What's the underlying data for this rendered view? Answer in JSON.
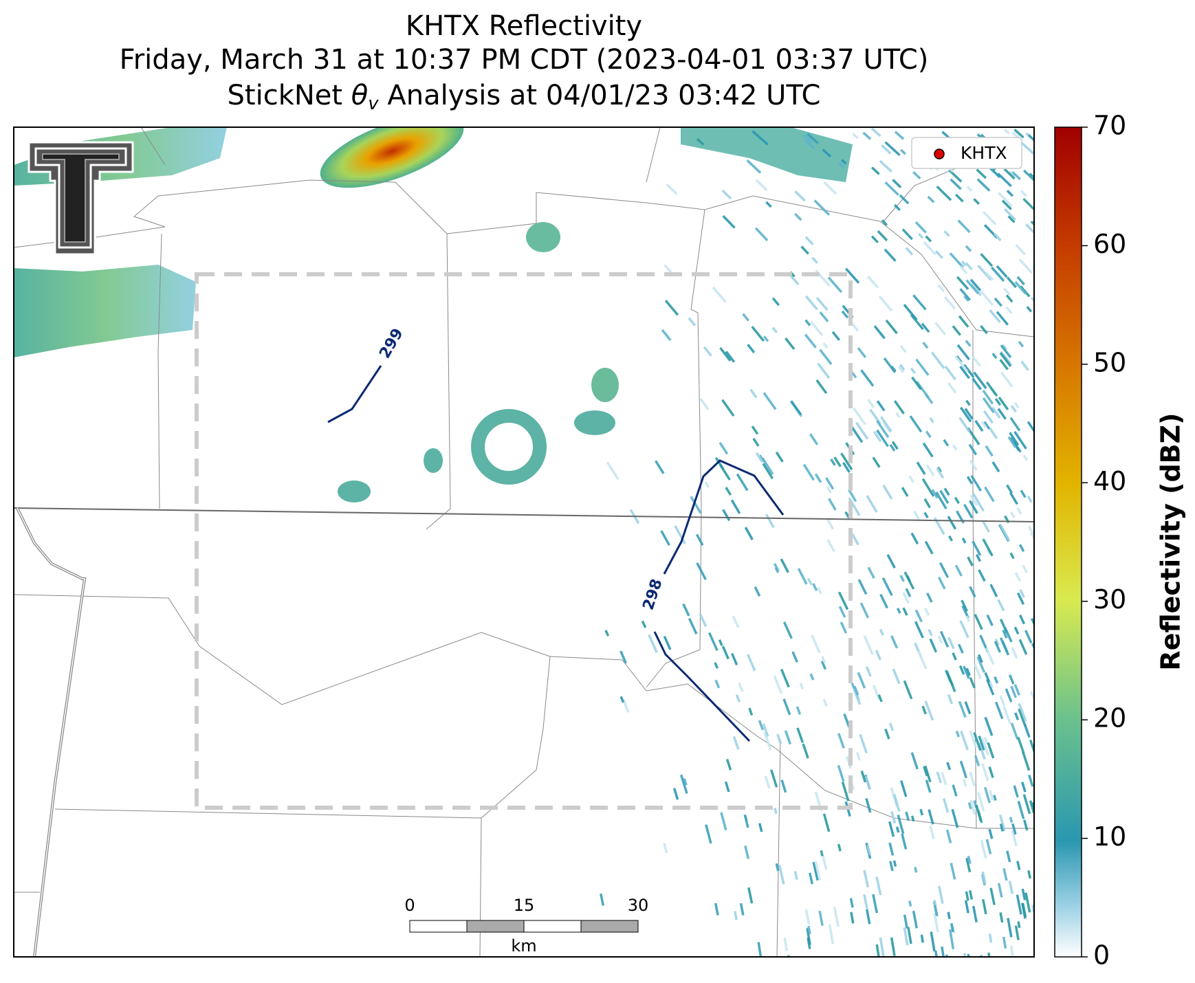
{
  "title": {
    "line1": "KHTX Reflectivity",
    "line2": "Friday, March 31 at 10:37 PM CDT (2023-04-01 03:37 UTC)",
    "line3": {
      "prefix": "StickNet ",
      "symbol": "θ",
      "subscript": "v",
      "suffix": " Analysis at 04/01/23 03:42 UTC"
    }
  },
  "legend": {
    "label": "KHTX"
  },
  "contours": [
    {
      "label": "299"
    },
    {
      "label": "298"
    }
  ],
  "scale_bar": {
    "ticks": [
      0,
      15,
      30
    ],
    "unit": "km"
  },
  "colorbar": {
    "label": "Reflectivity (dBZ)",
    "lim": [
      0,
      70
    ],
    "ticks": [
      0,
      10,
      20,
      30,
      40,
      50,
      60,
      70
    ]
  }
}
